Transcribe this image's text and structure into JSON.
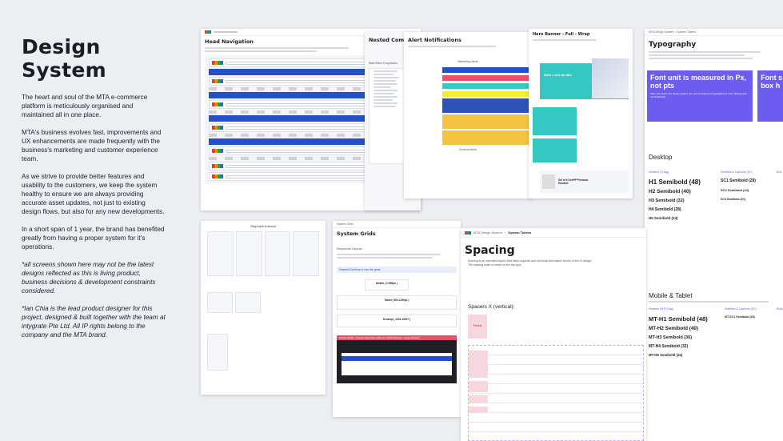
{
  "intro": {
    "title": "Design System",
    "p1": "The heart and soul of the MTA e-commerce platform is meticulously organised and maintained all in one place.",
    "p2": "MTA's business evolves fast, improvements and UX enhancements are made frequently with the business's marketing and customer experience team.",
    "p3": "As we strive to provide better features and usability to the customers, we keep the system healthy to ensure we are always providing accurate asset updates, not just to existing design flows, but also for any new developments.",
    "p4": "In a short span of 1 year, the brand has benefited greatly from having a proper system for it's operations.",
    "note1": "*all screens shown here may not be the latest designs reflected as this is living product, business decisions & development constraints considered.",
    "note2": "*Ian Chia is the lead product designer for this project, designed & built together with the team at intygrate Pte Ltd. All IP rights belong to the company and the MTA brand."
  },
  "cards": {
    "head_nav": {
      "title": "Head Navigation"
    },
    "nested": {
      "title": "Nested Compon",
      "sub": "Main Menu Dropdowns"
    },
    "alerts": {
      "title": "Alert Notifications",
      "top_label": "Marketing Alerts",
      "bottom_label": "General Alerts"
    },
    "hero": {
      "title": "Hero Banner - Full - Wrap",
      "promo": "2024. Let's do this",
      "product": "Set of 6 OnePP Premium Headset"
    },
    "typo": {
      "crumb": "MTA Design System  >  System Tokens",
      "title": "Typography",
      "callout": "Font unit is measured in Px, not pts",
      "callout_body": "Take note that in the design system, the unit of measure of typography is in Px (Pixels) and not Pt (Points).",
      "callout2": "Font s box h",
      "desktop": "Desktop",
      "col1": "Headers (H-tag)",
      "col2": "Subtitles & Captions (SC)",
      "col3": "Bod",
      "h1": "H1 Semibold (48)",
      "h2": "H2 Semibold (40)",
      "h3": "H3 Semibold (32)",
      "h4": "H4 Semibold (28)",
      "h5": "H5 Semibold (24)",
      "sc1": "SC1 Semibold (28)",
      "sc2": "SC2 Semibold (24)",
      "sc3": "SC3 Semibold (20)",
      "mobile": "Mobile & Tablet",
      "mcol1": "Headers (MT-H tag)",
      "mcol2": "Subtitles & Captions (SC)",
      "mcol3": "Body",
      "mh1": "MT-H1 Semibold (48)",
      "mh2": "MT-H2 Semibold (40)",
      "mh3": "MT-H3 Semibold (36)",
      "mh4": "MT-H4 Semibold (32)",
      "mh5": "MT-H5 Semibold (24)",
      "msc1": "MT-SC1 Semibold (28)"
    },
    "shop": {
      "label": "Shop back to school"
    },
    "grids": {
      "crumb": "System Grids",
      "title": "System Grids",
      "sub": "Responsive Layouts",
      "tip": "Gwenth/Gm/How to use the grids",
      "m": "Mobile ( 0-599px )",
      "t": "Tablet ( 600-1199px )",
      "d": "Desktop ( 1024-1920+ )",
      "banner": "1152px Width : Content body Max width ext. 90/20 banners : Large Monitors"
    },
    "spacing": {
      "crumb1": "MTA Design System",
      "crumb2": "System Tokens",
      "title": "Spacing",
      "desc": "Spacing is an important aspect that helps organise and structure information blocks in the UI design. The spacing scale is based on the 8px grid.",
      "section": "Spacers X (vertical):",
      "cell": "Pexels"
    }
  },
  "colors": {
    "blue": "#2450c8",
    "teal": "#35c8c2",
    "purple": "#6d5cf0",
    "bg": "#eceef2"
  }
}
